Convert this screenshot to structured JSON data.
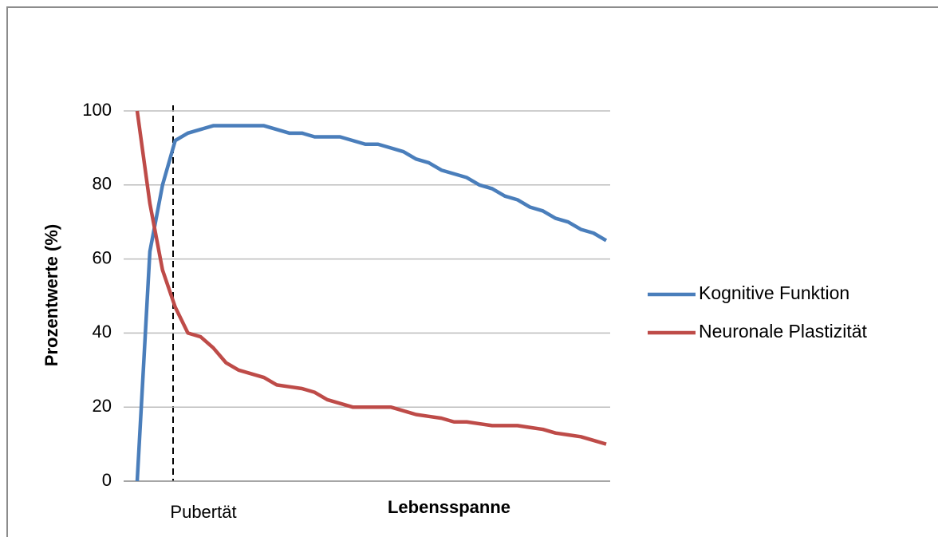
{
  "chart_data": {
    "type": "line",
    "y_label": "Prozentwerte (%)",
    "x_label": "Lebensspanne",
    "annotation": "Pubertät",
    "categories": [
      null,
      null,
      null,
      null,
      null,
      null,
      null,
      null,
      null,
      null,
      null,
      null,
      null,
      null,
      null,
      null,
      null,
      null,
      null,
      null,
      null,
      null,
      null,
      null,
      null,
      null,
      null,
      null,
      null,
      null,
      null,
      null,
      null,
      null,
      null,
      null,
      null,
      null
    ],
    "series": [
      {
        "name": "Kognitive Funktion",
        "color": "#4a7ebb",
        "values": [
          0,
          62,
          80,
          92,
          94,
          95,
          96,
          96,
          96,
          96,
          96,
          95,
          94,
          94,
          93,
          93,
          93,
          92,
          91,
          91,
          90,
          89,
          87,
          86,
          84,
          83,
          82,
          80,
          79,
          77,
          76,
          74,
          73,
          71,
          70,
          68,
          67,
          65
        ]
      },
      {
        "name": "Neuronale Plastizität",
        "color": "#be4b48",
        "values": [
          100,
          75,
          57,
          47,
          40,
          39,
          36,
          32,
          30,
          29,
          28,
          26,
          25.5,
          25,
          24,
          22,
          21,
          20,
          20,
          20,
          20,
          19,
          18,
          17.5,
          17,
          16,
          16,
          15.5,
          15,
          15,
          15,
          14.5,
          14,
          13,
          12.5,
          12,
          11,
          10
        ]
      }
    ],
    "ylim": [
      0,
      100
    ],
    "yticks": [
      0,
      20,
      40,
      60,
      80,
      100
    ],
    "grid": true
  }
}
